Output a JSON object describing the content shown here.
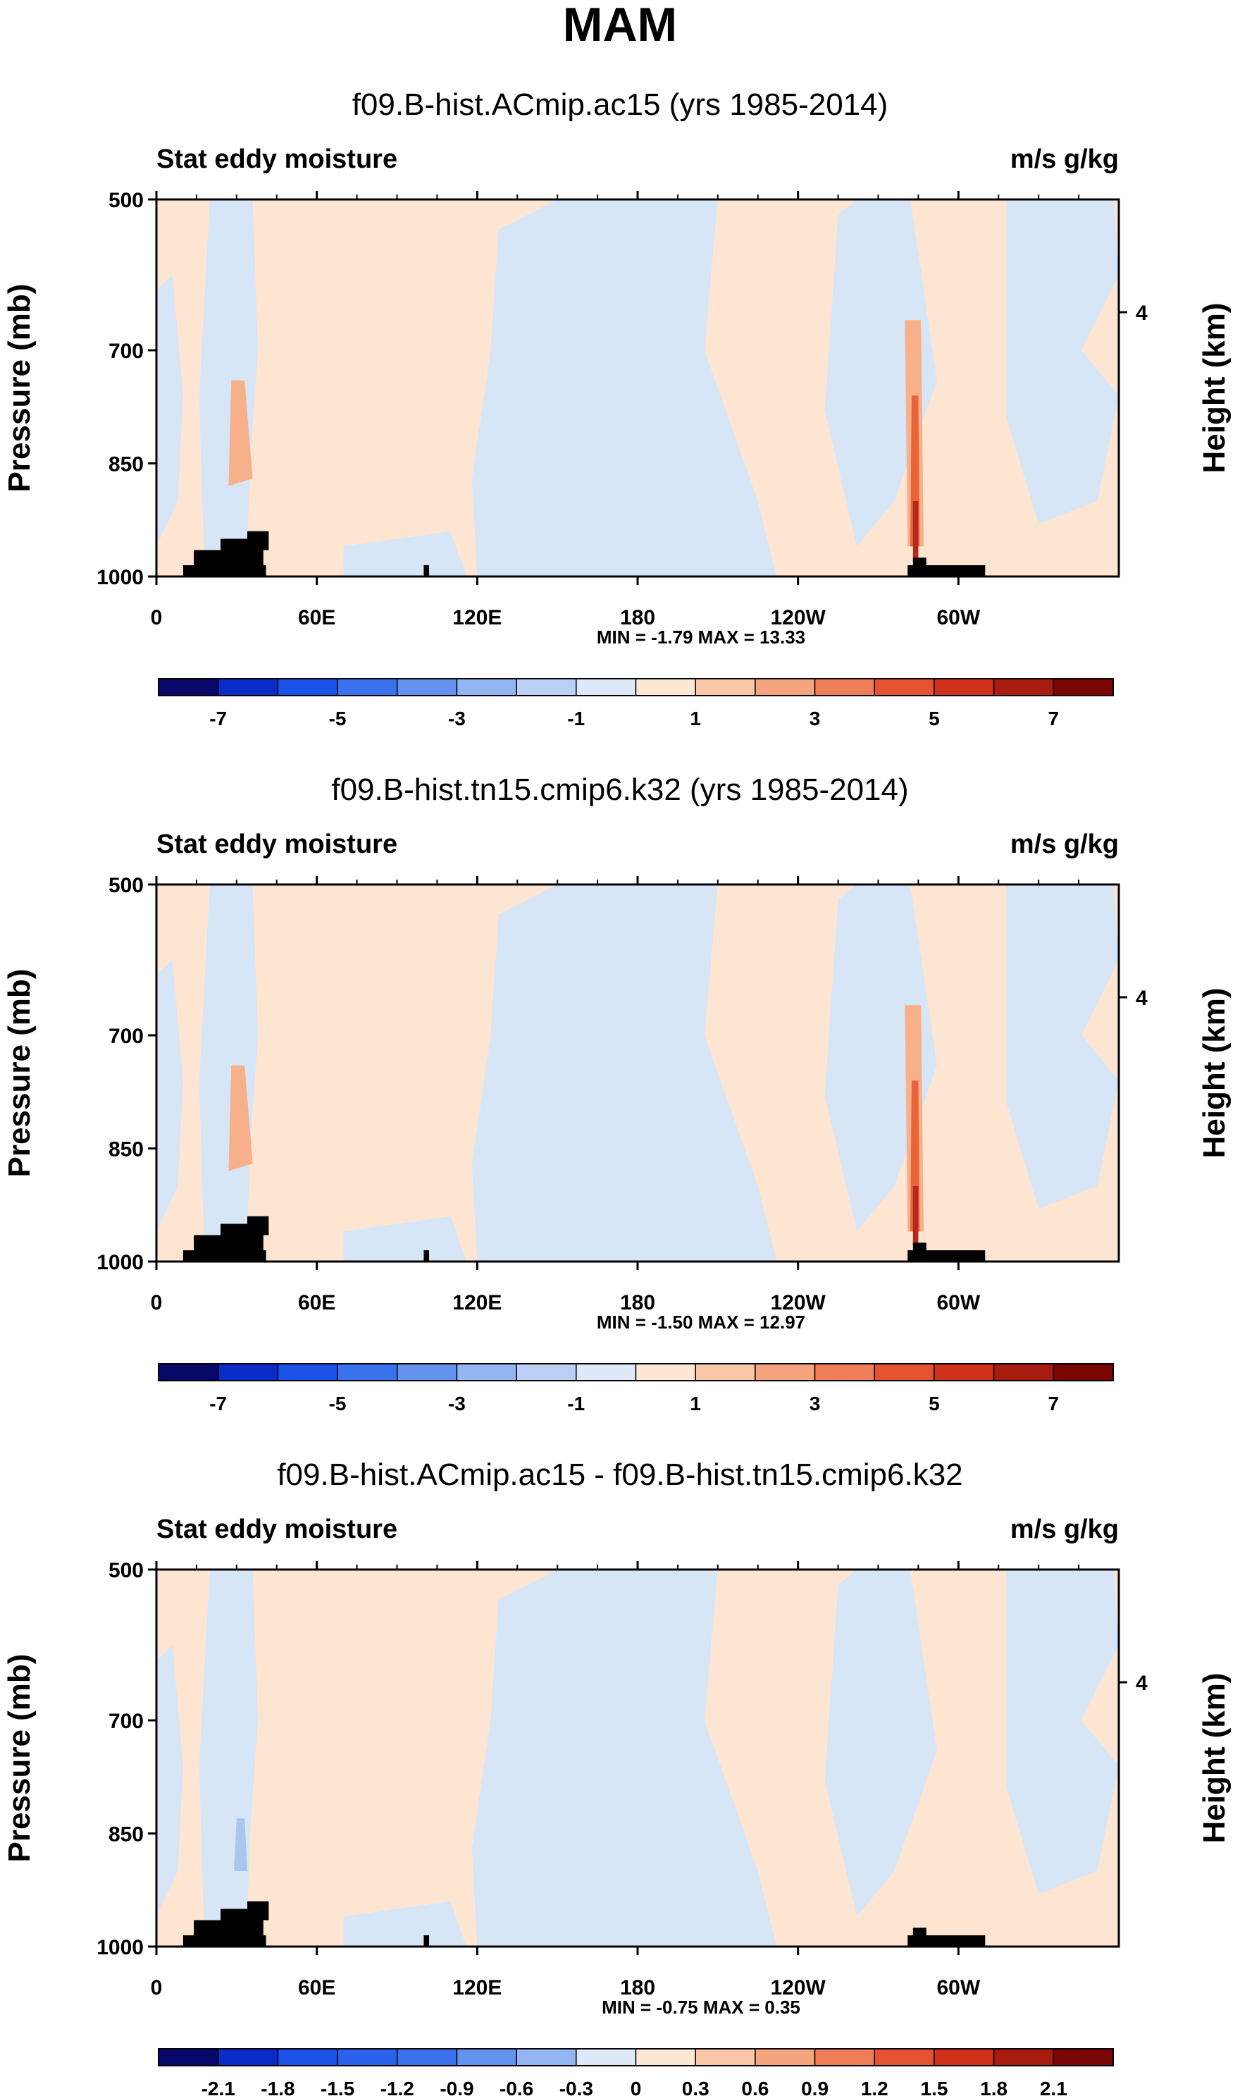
{
  "figure": {
    "title": "MAM"
  },
  "colors": {
    "light_orange": "#fde5d2",
    "light_blue": "#d6e6f7",
    "mid_orange": "#f7b08a",
    "deep_orange": "#e8643a",
    "dark_red": "#b8271b",
    "pale_blue_mid": "#a9c6ee",
    "land_mask": "#000000"
  },
  "chart_data": [
    {
      "type": "heatmap",
      "panel_title": "f09.B-hist.ACmip.ac15 (yrs 1985-2014)",
      "left_label": "Stat eddy moisture",
      "right_label": "m/s g/kg",
      "ylabel": "Pressure (mb)",
      "ylabel_right": "Height (km)",
      "y_ticks": [
        "500",
        "700",
        "850",
        "1000"
      ],
      "y_tick_values": [
        500,
        700,
        850,
        1000
      ],
      "ylim": [
        500,
        1000
      ],
      "right_ticks": [
        "4"
      ],
      "x_ticks": [
        "0",
        "60E",
        "120E",
        "180",
        "120W",
        "60W"
      ],
      "x_tick_values": [
        0,
        60,
        120,
        180,
        240,
        300
      ],
      "xlim": [
        0,
        360
      ],
      "stats": "MIN = -1.79  MAX = 13.33",
      "colorbar_labels": [
        "-7",
        "-5",
        "-3",
        "-1",
        "1",
        "3",
        "5",
        "7"
      ],
      "colorbar_colors": [
        "#08086b",
        "#0a2cc8",
        "#1a52e8",
        "#3a72ee",
        "#6393ef",
        "#93b5f2",
        "#bcd0f5",
        "#dde9f8",
        "#fde8d6",
        "#f9c7a7",
        "#f5a57e",
        "#ef7d56",
        "#e5522f",
        "#cf3219",
        "#a81c10",
        "#7a0505"
      ]
    },
    {
      "type": "heatmap",
      "panel_title": "f09.B-hist.tn15.cmip6.k32 (yrs 1985-2014)",
      "left_label": "Stat eddy moisture",
      "right_label": "m/s g/kg",
      "ylabel": "Pressure (mb)",
      "ylabel_right": "Height (km)",
      "y_ticks": [
        "500",
        "700",
        "850",
        "1000"
      ],
      "y_tick_values": [
        500,
        700,
        850,
        1000
      ],
      "ylim": [
        500,
        1000
      ],
      "right_ticks": [
        "4"
      ],
      "x_ticks": [
        "0",
        "60E",
        "120E",
        "180",
        "120W",
        "60W"
      ],
      "x_tick_values": [
        0,
        60,
        120,
        180,
        240,
        300
      ],
      "xlim": [
        0,
        360
      ],
      "stats": "MIN = -1.50  MAX = 12.97",
      "colorbar_labels": [
        "-7",
        "-5",
        "-3",
        "-1",
        "1",
        "3",
        "5",
        "7"
      ],
      "colorbar_colors": [
        "#08086b",
        "#0a2cc8",
        "#1a52e8",
        "#3a72ee",
        "#6393ef",
        "#93b5f2",
        "#bcd0f5",
        "#dde9f8",
        "#fde8d6",
        "#f9c7a7",
        "#f5a57e",
        "#ef7d56",
        "#e5522f",
        "#cf3219",
        "#a81c10",
        "#7a0505"
      ]
    },
    {
      "type": "heatmap",
      "panel_title": "f09.B-hist.ACmip.ac15 - f09.B-hist.tn15.cmip6.k32",
      "left_label": "Stat eddy moisture",
      "right_label": "m/s g/kg",
      "ylabel": "Pressure (mb)",
      "ylabel_right": "Height (km)",
      "y_ticks": [
        "500",
        "700",
        "850",
        "1000"
      ],
      "y_tick_values": [
        500,
        700,
        850,
        1000
      ],
      "ylim": [
        500,
        1000
      ],
      "right_ticks": [
        "4"
      ],
      "x_ticks": [
        "0",
        "60E",
        "120E",
        "180",
        "120W",
        "60W"
      ],
      "x_tick_values": [
        0,
        60,
        120,
        180,
        240,
        300
      ],
      "xlim": [
        0,
        360
      ],
      "stats": "MIN = -0.75  MAX =  0.35",
      "colorbar_labels": [
        "-2.1",
        "-1.8",
        "-1.5",
        "-1.2",
        "-0.9",
        "-0.6",
        "-0.3",
        "0",
        "0.3",
        "0.6",
        "0.9",
        "1.2",
        "1.5",
        "1.8",
        "2.1"
      ],
      "colorbar_colors": [
        "#08086b",
        "#0a2cc8",
        "#1a52e8",
        "#2a62ec",
        "#3a72ee",
        "#6393ef",
        "#93b5f2",
        "#dde9f8",
        "#fde8d6",
        "#f9c7a7",
        "#f5a57e",
        "#ef7d56",
        "#e5522f",
        "#cf3219",
        "#a81c10",
        "#7a0505"
      ]
    }
  ]
}
